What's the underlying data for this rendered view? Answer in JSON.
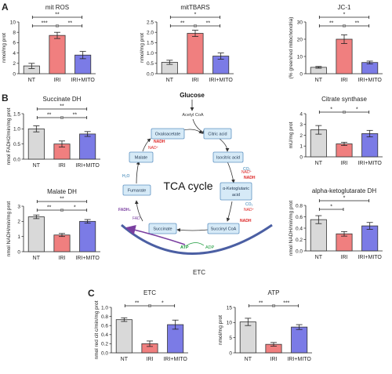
{
  "panel_labels": [
    "A",
    "B",
    "C"
  ],
  "chart_data": [
    {
      "id": "ros",
      "type": "bar",
      "title": "mit ROS",
      "ylabel": "nmol/mg prot",
      "categories": [
        "NT",
        "IRI",
        "IRI+MITO"
      ],
      "values": [
        1.5,
        7.4,
        3.6
      ],
      "errors": [
        0.5,
        0.6,
        0.7
      ],
      "ylim": [
        0,
        10
      ],
      "yticks": [
        "0",
        "2",
        "4",
        "6",
        "8",
        "10"
      ],
      "significance": [
        {
          "a": 0,
          "b": 2,
          "label": "**"
        },
        {
          "a": 0,
          "b": 1,
          "label": "***"
        },
        {
          "a": 1,
          "b": 2,
          "label": "**"
        }
      ]
    },
    {
      "id": "tbars",
      "type": "bar",
      "title": "mitTBARS",
      "ylabel": "nmol/mg prot",
      "categories": [
        "NT",
        "IRI",
        "IRI+MITO"
      ],
      "values": [
        0.55,
        1.95,
        0.85
      ],
      "errors": [
        0.1,
        0.15,
        0.15
      ],
      "ylim": [
        0,
        2.5
      ],
      "yticks": [
        "0.0",
        "0.5",
        "1.0",
        "1.5",
        "2.0",
        "2.5"
      ],
      "significance": [
        {
          "a": 0,
          "b": 2,
          "label": "*"
        },
        {
          "a": 0,
          "b": 1,
          "label": "**"
        },
        {
          "a": 1,
          "b": 2,
          "label": "**"
        }
      ]
    },
    {
      "id": "jc1",
      "type": "bar",
      "title": "JC-1",
      "ylabel": "(% green/red mitochondria)",
      "categories": [
        "NT",
        "IRI",
        "IRI+MITO"
      ],
      "values": [
        3.7,
        20,
        6.5
      ],
      "errors": [
        0.5,
        2.5,
        0.8
      ],
      "ylim": [
        0,
        30
      ],
      "yticks": [
        "0",
        "10",
        "20",
        "30"
      ],
      "significance": [
        {
          "a": 0,
          "b": 2,
          "label": "*"
        },
        {
          "a": 0,
          "b": 1,
          "label": "**"
        },
        {
          "a": 1,
          "b": 2,
          "label": "**"
        }
      ]
    },
    {
      "id": "sdh",
      "type": "bar",
      "title": "Succinate DH",
      "ylabel": "nmol FADH2/min/mg prot",
      "categories": [
        "NT",
        "IRI",
        "IRI+MITO"
      ],
      "values": [
        1.0,
        0.5,
        0.83
      ],
      "errors": [
        0.1,
        0.1,
        0.08
      ],
      "ylim": [
        0,
        1.5
      ],
      "yticks": [
        "0.0",
        "0.5",
        "1.0",
        "1.5"
      ],
      "significance": [
        {
          "a": 0,
          "b": 2,
          "label": "**"
        },
        {
          "a": 0,
          "b": 1,
          "label": "**"
        },
        {
          "a": 1,
          "b": 2,
          "label": "**"
        }
      ]
    },
    {
      "id": "cs",
      "type": "bar",
      "title": "Citrate synthase",
      "ylabel": "mU/mg prot",
      "categories": [
        "NT",
        "IRI",
        "IRI+MITO"
      ],
      "values": [
        2.5,
        1.2,
        2.15
      ],
      "errors": [
        0.4,
        0.15,
        0.3
      ],
      "ylim": [
        0,
        4
      ],
      "yticks": [
        "0",
        "1",
        "2",
        "3",
        "4"
      ],
      "significance": [
        {
          "a": 0,
          "b": 1,
          "label": "*"
        },
        {
          "a": 1,
          "b": 2,
          "label": "*"
        }
      ]
    },
    {
      "id": "mdh",
      "type": "bar",
      "title": "Malate DH",
      "ylabel": "nmol NADH/min/mg prot",
      "categories": [
        "NT",
        "IRI",
        "IRI+MITO"
      ],
      "values": [
        2.3,
        1.1,
        2.0
      ],
      "errors": [
        0.12,
        0.1,
        0.12
      ],
      "ylim": [
        0,
        3
      ],
      "yticks": [
        "0",
        "1",
        "2",
        "3"
      ],
      "significance": [
        {
          "a": 0,
          "b": 2,
          "label": "**"
        },
        {
          "a": 0,
          "b": 1,
          "label": "**"
        },
        {
          "a": 1,
          "b": 2,
          "label": "*"
        }
      ]
    },
    {
      "id": "akg",
      "type": "bar",
      "title": "alpha-ketoglutarate DH",
      "ylabel": "nmol NADH/min/mg prot",
      "categories": [
        "NT",
        "IRI",
        "IRI+MITO"
      ],
      "values": [
        0.55,
        0.3,
        0.44
      ],
      "errors": [
        0.07,
        0.04,
        0.06
      ],
      "ylim": [
        0,
        0.8
      ],
      "yticks": [
        "0.0",
        "0.2",
        "0.4",
        "0.6",
        "0.8"
      ],
      "significance": [
        {
          "a": 0,
          "b": 2,
          "label": "*"
        },
        {
          "a": 0,
          "b": 1,
          "label": "*"
        }
      ]
    },
    {
      "id": "etc",
      "type": "bar",
      "title": "ETC",
      "ylabel": "nmol red cit c/min/mg prot",
      "categories": [
        "NT",
        "IRI",
        "IRI+MITO"
      ],
      "values": [
        0.73,
        0.2,
        0.62
      ],
      "errors": [
        0.04,
        0.06,
        0.1
      ],
      "ylim": [
        0,
        1.0
      ],
      "yticks": [
        "0.0",
        "0.2",
        "0.4",
        "0.6",
        "0.8",
        "1.0"
      ],
      "significance": [
        {
          "a": 0,
          "b": 1,
          "label": "**"
        },
        {
          "a": 1,
          "b": 2,
          "label": "*"
        }
      ]
    },
    {
      "id": "atp",
      "type": "bar",
      "title": "ATP",
      "ylabel": "nmol/mg prot",
      "categories": [
        "NT",
        "IRI",
        "IRI+MITO"
      ],
      "values": [
        10.2,
        2.8,
        8.5
      ],
      "errors": [
        1.2,
        0.6,
        0.8
      ],
      "ylim": [
        0,
        15
      ],
      "yticks": [
        "0",
        "5",
        "10",
        "15"
      ],
      "significance": [
        {
          "a": 0,
          "b": 1,
          "label": "**"
        },
        {
          "a": 1,
          "b": 2,
          "label": "***"
        }
      ]
    }
  ],
  "colors": {
    "NT": "#d9d9d9",
    "IRI": "#f07f7f",
    "IRI+MITO": "#7b7be6",
    "box_fill": "#d6eaf7",
    "box_stroke": "#5f93c2",
    "etc_arc": "#4b5fa3",
    "etc_arrow": "#7a3fa0"
  },
  "diagram": {
    "title": "TCA cycle",
    "glucose": "Glucose",
    "acetyl": "Acetyl CoA",
    "etc_label": "ETC",
    "boxes": {
      "oxaloacetate": "Oxaloacetate",
      "citric": "Citric acid",
      "malate": "Malate",
      "isocitric": "Isocitric acid",
      "fumarate": "Fumarate",
      "akg1": "α-Ketoglutaric",
      "akg2": "acid",
      "succinate": "Succinate",
      "succinyl": "Succinyl CoA"
    },
    "small": {
      "nadh1": "NADH",
      "nad1": "NAD⁺",
      "h2o": "H₂O",
      "co2a": "CO₂",
      "nad2": "NAD⁺",
      "nadh2": "NADH",
      "co2b": "CO₂",
      "nad3": "NAD⁺",
      "nadh3": "NADH",
      "fadh2": "FADH₂",
      "fad": "FAD",
      "atp": "ATP",
      "adp": "ADP"
    }
  }
}
